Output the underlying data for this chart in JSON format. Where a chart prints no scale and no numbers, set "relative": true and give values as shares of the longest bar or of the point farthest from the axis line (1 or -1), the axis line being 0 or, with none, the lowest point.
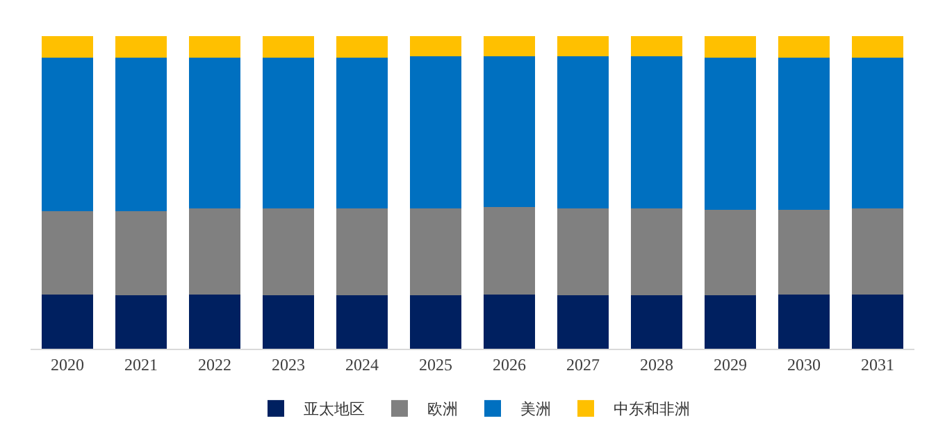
{
  "chart_data": {
    "type": "bar",
    "stacked": true,
    "relative": true,
    "legend": "bottom",
    "categories": [
      "2020",
      "2021",
      "2022",
      "2023",
      "2024",
      "2025",
      "2026",
      "2027",
      "2028",
      "2029",
      "2030",
      "2031"
    ],
    "series": [
      {
        "name": "亚太地区",
        "color": "#002060",
        "values": [
          0.174,
          0.17,
          0.174,
          0.17,
          0.17,
          0.17,
          0.174,
          0.17,
          0.17,
          0.17,
          0.174,
          0.174
        ]
      },
      {
        "name": "欧洲",
        "color": "#808080",
        "values": [
          0.266,
          0.27,
          0.274,
          0.278,
          0.278,
          0.278,
          0.278,
          0.278,
          0.278,
          0.274,
          0.27,
          0.274
        ]
      },
      {
        "name": "美洲",
        "color": "#0070c0",
        "values": [
          0.491,
          0.491,
          0.483,
          0.483,
          0.483,
          0.487,
          0.483,
          0.487,
          0.487,
          0.487,
          0.487,
          0.483
        ]
      },
      {
        "name": "中东和非洲",
        "color": "#ffc000",
        "values": [
          0.068,
          0.069,
          0.068,
          0.068,
          0.068,
          0.064,
          0.064,
          0.064,
          0.064,
          0.068,
          0.068,
          0.068
        ]
      }
    ]
  }
}
